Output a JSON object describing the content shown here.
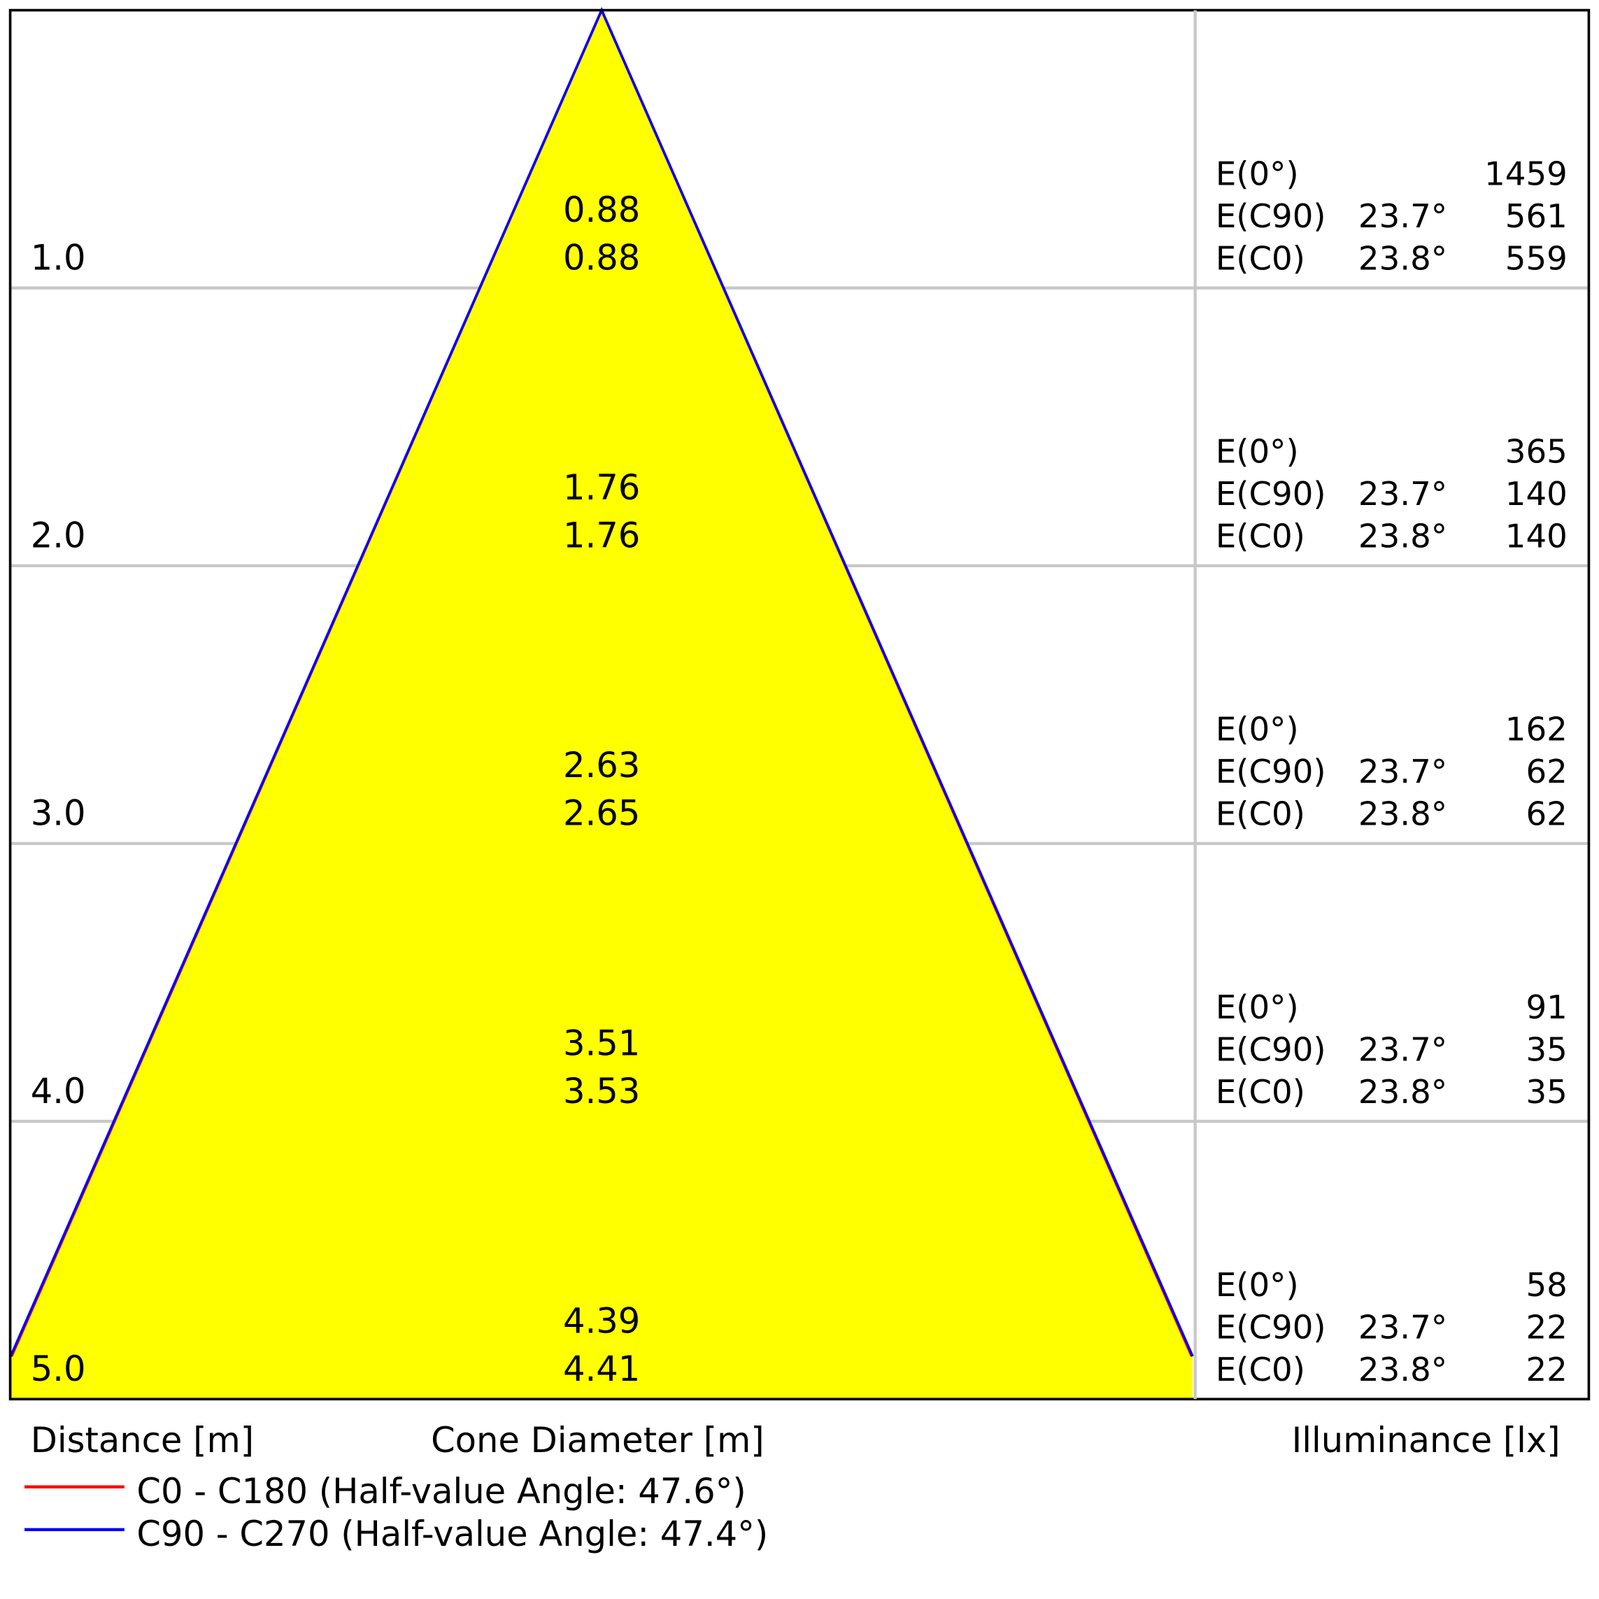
{
  "chart_data": {
    "type": "cone-diagram",
    "xlabel_left": "Distance [m]",
    "xlabel_center": "Cone Diameter [m]",
    "xlabel_right": "Illuminance [lx]",
    "fill_color": "#ffff00",
    "grid": true,
    "series": [
      {
        "name": "C0 - C180 (Half-value Angle: 47.6°)",
        "color": "#ff0000",
        "half_angle_deg": 47.6
      },
      {
        "name": "C90 - C270 (Half-value Angle: 47.4°)",
        "color": "#0000ff",
        "half_angle_deg": 47.4
      }
    ],
    "rows": [
      {
        "distance": "1.0",
        "diameters": [
          "0.88",
          "0.88"
        ],
        "illuminance": [
          {
            "label": "E(0°)",
            "angle": "",
            "value": "1459"
          },
          {
            "label": "E(C90)",
            "angle": "23.7°",
            "value": "561"
          },
          {
            "label": "E(C0)",
            "angle": "23.8°",
            "value": "559"
          }
        ]
      },
      {
        "distance": "2.0",
        "diameters": [
          "1.76",
          "1.76"
        ],
        "illuminance": [
          {
            "label": "E(0°)",
            "angle": "",
            "value": "365"
          },
          {
            "label": "E(C90)",
            "angle": "23.7°",
            "value": "140"
          },
          {
            "label": "E(C0)",
            "angle": "23.8°",
            "value": "140"
          }
        ]
      },
      {
        "distance": "3.0",
        "diameters": [
          "2.63",
          "2.65"
        ],
        "illuminance": [
          {
            "label": "E(0°)",
            "angle": "",
            "value": "162"
          },
          {
            "label": "E(C90)",
            "angle": "23.7°",
            "value": "62"
          },
          {
            "label": "E(C0)",
            "angle": "23.8°",
            "value": "62"
          }
        ]
      },
      {
        "distance": "4.0",
        "diameters": [
          "3.51",
          "3.53"
        ],
        "illuminance": [
          {
            "label": "E(0°)",
            "angle": "",
            "value": "91"
          },
          {
            "label": "E(C90)",
            "angle": "23.7°",
            "value": "35"
          },
          {
            "label": "E(C0)",
            "angle": "23.8°",
            "value": "35"
          }
        ]
      },
      {
        "distance": "5.0",
        "diameters": [
          "4.39",
          "4.41"
        ],
        "illuminance": [
          {
            "label": "E(0°)",
            "angle": "",
            "value": "58"
          },
          {
            "label": "E(C90)",
            "angle": "23.7°",
            "value": "22"
          },
          {
            "label": "E(C0)",
            "angle": "23.8°",
            "value": "22"
          }
        ]
      }
    ]
  }
}
